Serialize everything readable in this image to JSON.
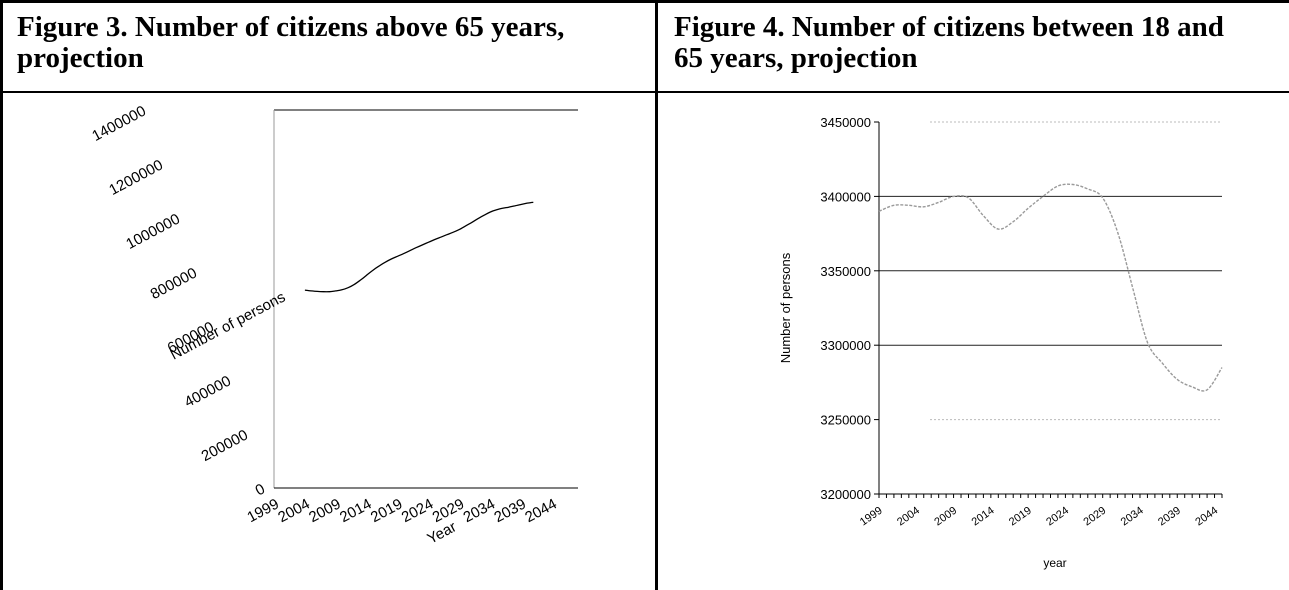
{
  "figures": [
    {
      "title_line1": "Figure 3. Number of citizens above 65 years,",
      "title_line2": "projection"
    },
    {
      "title_line1": "Figure 4. Number of citizens between 18 and",
      "title_line2": "65 years, projection"
    }
  ],
  "chart_data": [
    {
      "type": "line",
      "title": "",
      "xlabel": "Year",
      "ylabel": "Number of persons",
      "ylim": [
        0,
        1400000
      ],
      "y_ticks": [
        "0",
        "200000",
        "400000",
        "600000",
        "800000",
        "1000000",
        "1200000",
        "1400000"
      ],
      "x_ticks": [
        "1999",
        "2004",
        "2009",
        "2014",
        "2019",
        "2024",
        "2029",
        "2034",
        "2039",
        "2044"
      ],
      "grid": false,
      "series": [
        {
          "x": [
            2004,
            2005,
            2006,
            2007,
            2008,
            2009,
            2010,
            2011,
            2012,
            2013,
            2014,
            2015,
            2016,
            2017,
            2018,
            2019,
            2020,
            2021,
            2022,
            2023,
            2024,
            2025,
            2026,
            2027,
            2028,
            2029,
            2030,
            2031,
            2032,
            2033,
            2034,
            2035,
            2036,
            2037,
            2038,
            2039,
            2040,
            2041
          ],
          "values": [
            733000,
            730000,
            728000,
            727000,
            727000,
            730000,
            734000,
            742000,
            754000,
            770000,
            788000,
            806000,
            822000,
            836000,
            848000,
            858000,
            868000,
            879000,
            890000,
            900000,
            910000,
            920000,
            929000,
            938000,
            947000,
            957000,
            970000,
            983000,
            997000,
            1010000,
            1022000,
            1030000,
            1036000,
            1040000,
            1045000,
            1050000,
            1055000,
            1058000
          ]
        }
      ]
    },
    {
      "type": "line",
      "title": "",
      "xlabel": "year",
      "ylabel": "Number of persons",
      "ylim": [
        3200000,
        3450000
      ],
      "y_ticks": [
        "3200000",
        "3250000",
        "3300000",
        "3350000",
        "3400000",
        "3450000"
      ],
      "x_ticks": [
        "1999",
        "2004",
        "2009",
        "2014",
        "2019",
        "2024",
        "2029",
        "2034",
        "2039",
        "2044"
      ],
      "grid": true,
      "series": [
        {
          "x": [
            1999,
            2001,
            2003,
            2005,
            2007,
            2009,
            2011,
            2013,
            2015,
            2017,
            2019,
            2021,
            2023,
            2025,
            2027,
            2029,
            2031,
            2033,
            2035,
            2037,
            2039,
            2041,
            2043,
            2045
          ],
          "values": [
            3390000,
            3394000,
            3394000,
            3393000,
            3396000,
            3400000,
            3399000,
            3387000,
            3378000,
            3383000,
            3392000,
            3400000,
            3407000,
            3408000,
            3405000,
            3399000,
            3376000,
            3339000,
            3302000,
            3288000,
            3277000,
            3272000,
            3270000,
            3285000
          ]
        }
      ]
    }
  ]
}
